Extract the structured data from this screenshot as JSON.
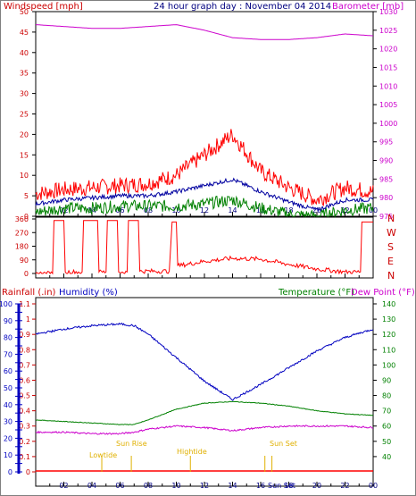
{
  "header": {
    "left_label": "Windspeed [mph]",
    "title": "24 hour graph day : November 04 2014",
    "right_label": "Barometer [mb]"
  },
  "panel2": {
    "compass_labels": [
      "N",
      "W",
      "S",
      "E",
      "N"
    ]
  },
  "panel3": {
    "rain_label": "Rainfall (.in)",
    "humidity_label": "Humidity (%)",
    "temp_label": "Temperature (°F)",
    "dew_label": "Dew Point (°F)",
    "sun_labels": [
      "Lowtide",
      "Sun Rise",
      "Hightide",
      "Sun Set",
      "Sun Set"
    ]
  },
  "colors": {
    "wind_gust": "#ff0000",
    "wind_avg": "#0000a0",
    "wind_low": "#008000",
    "barometer": "#cc00cc",
    "rain": "#ff0000",
    "humidity": "#0000c0",
    "temperature": "#008000",
    "dewpoint": "#cc00cc",
    "sun_markers": "#e0b000"
  },
  "chart_data": [
    {
      "type": "line",
      "title": "24 hour graph day : November 04 2014",
      "ylabel": "Windspeed [mph]",
      "y2label": "Barometer [mb]",
      "ylim": [
        0,
        50
      ],
      "y2lim": [
        975,
        1030
      ],
      "yticks": [
        0,
        5,
        10,
        15,
        20,
        25,
        30,
        35,
        40,
        45,
        50
      ],
      "y2ticks": [
        975,
        980,
        985,
        990,
        995,
        1000,
        1005,
        1010,
        1015,
        1020,
        1025,
        1030
      ],
      "xticks": [
        "02",
        "04",
        "06",
        "08",
        "10",
        "12",
        "14",
        "16",
        "18",
        "20",
        "22",
        "00"
      ],
      "x": [
        0,
        2,
        4,
        6,
        8,
        10,
        12,
        14,
        16,
        18,
        20,
        22,
        24
      ],
      "series": [
        {
          "name": "Gust",
          "values": [
            5.5,
            6.5,
            7,
            7.5,
            8,
            10,
            15,
            20,
            11,
            7,
            4,
            7,
            6
          ]
        },
        {
          "name": "Average",
          "values": [
            3,
            4,
            4.5,
            5,
            5,
            6,
            7.5,
            9,
            6,
            3.5,
            1.5,
            4,
            4
          ]
        },
        {
          "name": "Low",
          "values": [
            1,
            2,
            2,
            2.5,
            2.5,
            2.5,
            3,
            4,
            2,
            0.5,
            0,
            1.5,
            2
          ]
        },
        {
          "name": "Barometer",
          "values": [
            1026.5,
            1026,
            1025.5,
            1025.5,
            1026,
            1026.5,
            1025,
            1023,
            1022.5,
            1022.5,
            1023,
            1024,
            1023.5
          ]
        }
      ]
    },
    {
      "type": "line",
      "ylabel": "Wind direction",
      "ylim": [
        0,
        360
      ],
      "yticks": [
        0,
        90,
        180,
        270,
        360
      ],
      "xticks": [
        "02",
        "04",
        "06",
        "08",
        "10",
        "12",
        "14",
        "16",
        "18",
        "20",
        "22",
        "00"
      ],
      "series": [
        {
          "name": "Direction",
          "points": [
            [
              0,
              0
            ],
            [
              1.2,
              0
            ],
            [
              1.3,
              350
            ],
            [
              2,
              350
            ],
            [
              2.1,
              10
            ],
            [
              3.3,
              10
            ],
            [
              3.4,
              350
            ],
            [
              4.4,
              350
            ],
            [
              4.5,
              10
            ],
            [
              5,
              10
            ],
            [
              5.1,
              350
            ],
            [
              5.8,
              350
            ],
            [
              5.9,
              10
            ],
            [
              6.5,
              10
            ],
            [
              6.6,
              350
            ],
            [
              7.3,
              350
            ],
            [
              7.4,
              15
            ],
            [
              9.5,
              15
            ],
            [
              9.7,
              340
            ],
            [
              10,
              340
            ],
            [
              10.1,
              50
            ],
            [
              12,
              80
            ],
            [
              14,
              100
            ],
            [
              16,
              95
            ],
            [
              18,
              60
            ],
            [
              20,
              30
            ],
            [
              22,
              10
            ],
            [
              23.1,
              10
            ],
            [
              23.2,
              340
            ],
            [
              24,
              340
            ]
          ]
        }
      ]
    },
    {
      "type": "line",
      "ylabel": "Humidity (%)",
      "y2label": "Temperature (°F)",
      "ylim": [
        0,
        100
      ],
      "y2lim": [
        30,
        140
      ],
      "yticks": [
        0,
        5,
        10,
        15,
        20,
        25,
        30,
        35,
        40,
        45,
        50,
        55,
        60,
        65,
        70,
        75,
        80,
        85,
        90,
        95,
        100
      ],
      "rain_ticks": [
        0,
        0.1,
        0.2,
        0.3,
        0.4,
        0.5,
        0.6,
        0.7,
        0.8,
        0.9,
        1,
        1.1
      ],
      "y2ticks": [
        40,
        50,
        60,
        70,
        80,
        90,
        100,
        110,
        120,
        130,
        140
      ],
      "xticks": [
        "02",
        "04",
        "06",
        "08",
        "10",
        "12",
        "14",
        "16",
        "18",
        "20",
        "22",
        "00"
      ],
      "x": [
        0,
        2,
        4,
        6,
        7,
        8,
        10,
        12,
        14,
        16,
        18,
        20,
        22,
        24
      ],
      "series": [
        {
          "name": "Humidity",
          "values": [
            82,
            85,
            87,
            88,
            87,
            82,
            68,
            54,
            43,
            52,
            62,
            72,
            80,
            85
          ]
        },
        {
          "name": "Temperature",
          "values": [
            64,
            63,
            62,
            61,
            61,
            64,
            71,
            75,
            76,
            75,
            73,
            70,
            68,
            67
          ]
        },
        {
          "name": "Dew Point",
          "values": [
            56,
            56,
            55,
            55,
            56,
            58,
            60,
            59,
            57,
            59,
            60,
            60,
            60,
            59
          ]
        },
        {
          "name": "Rainfall",
          "values": [
            0,
            0,
            0,
            0,
            0,
            0,
            0,
            0,
            0,
            0,
            0,
            0,
            0,
            0
          ]
        }
      ],
      "events": [
        {
          "label": "Lowtide",
          "x": 4.7
        },
        {
          "label": "Sun Rise",
          "x": 6.8
        },
        {
          "label": "Hightide",
          "x": 11.0
        },
        {
          "label": "Sun Set",
          "x": 16.8
        },
        {
          "label": "Sun Set",
          "x": 16.3
        }
      ]
    }
  ]
}
